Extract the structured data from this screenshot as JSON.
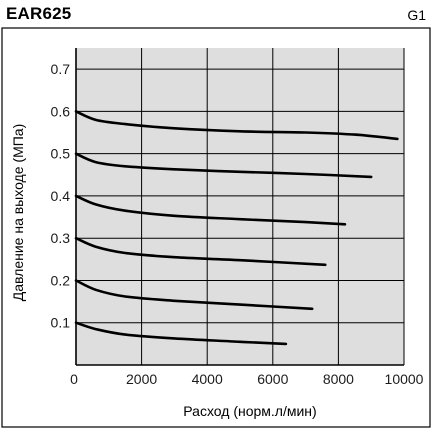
{
  "header": {
    "model": "EAR625",
    "code": "G1"
  },
  "chart_data": {
    "type": "line",
    "title": "EAR625",
    "xlabel": "Расход (норм.л/мин)",
    "ylabel": "Давление на выходе (МПа)",
    "xlim": [
      0,
      10000
    ],
    "ylim": [
      0,
      0.75
    ],
    "xticks": [
      0,
      2000,
      4000,
      6000,
      8000,
      10000
    ],
    "xtick_labels": [
      "0",
      "2000",
      "4000",
      "6000",
      "8000",
      "10000"
    ],
    "yticks": [
      0.1,
      0.2,
      0.3,
      0.4,
      0.5,
      0.6,
      0.7
    ],
    "ytick_labels": [
      "0.1",
      "0.2",
      "0.3",
      "0.4",
      "0.5",
      "0.6",
      "0.7"
    ],
    "grid": true,
    "background_color": "#dedede",
    "line_color": "#000000",
    "series": [
      {
        "x": [
          0,
          600,
          1500,
          3000,
          5000,
          7000,
          8500,
          9800
        ],
        "y": [
          0.6,
          0.58,
          0.57,
          0.56,
          0.553,
          0.55,
          0.545,
          0.535
        ]
      },
      {
        "x": [
          0,
          600,
          1500,
          3000,
          5000,
          7000,
          9000
        ],
        "y": [
          0.5,
          0.48,
          0.47,
          0.463,
          0.457,
          0.452,
          0.445
        ]
      },
      {
        "x": [
          0,
          600,
          1500,
          3000,
          5000,
          7000,
          8200
        ],
        "y": [
          0.4,
          0.38,
          0.365,
          0.353,
          0.345,
          0.338,
          0.333
        ]
      },
      {
        "x": [
          0,
          600,
          1500,
          3000,
          5000,
          7600
        ],
        "y": [
          0.3,
          0.28,
          0.265,
          0.255,
          0.248,
          0.237
        ]
      },
      {
        "x": [
          0,
          600,
          1500,
          3000,
          5000,
          7200
        ],
        "y": [
          0.2,
          0.178,
          0.162,
          0.152,
          0.143,
          0.133
        ]
      },
      {
        "x": [
          0,
          600,
          1500,
          3000,
          5000,
          6400
        ],
        "y": [
          0.1,
          0.085,
          0.072,
          0.063,
          0.055,
          0.05
        ]
      }
    ]
  }
}
